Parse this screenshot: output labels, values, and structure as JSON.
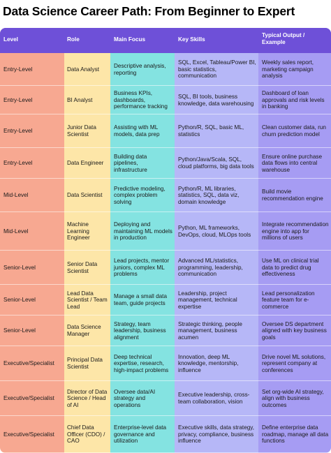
{
  "title": "Data Science Career Path: From Beginner to Expert",
  "headers": [
    "Level",
    "Role",
    "Main Focus",
    "Key Skills",
    "Typical Output / Example"
  ],
  "rows": [
    [
      "Entry-Level",
      "Data Analyst",
      "Descriptive analysis, reporting",
      "SQL, Excel, Tableau/Power BI, basic statistics, communication",
      "Weekly sales report, marketing campaign analysis"
    ],
    [
      "Entry-Level",
      "BI Analyst",
      "Business KPIs, dashboards, performance tracking",
      "SQL, BI tools, business knowledge, data warehousing",
      "Dashboard of loan approvals and risk levels in banking"
    ],
    [
      "Entry-Level",
      "Junior Data Scientist",
      "Assisting with ML models, data prep",
      "Python/R, SQL, basic ML, statistics",
      "Clean customer data, run churn prediction model"
    ],
    [
      "Entry-Level",
      "Data Engineer",
      "Building data pipelines, infrastructure",
      "Python/Java/Scala, SQL, cloud platforms, big data tools",
      "Ensure online purchase data flows into central warehouse"
    ],
    [
      "Mid-Level",
      "Data Scientist",
      "Predictive modeling, complex problem solving",
      "Python/R, ML libraries, statistics, SQL, data viz, domain knowledge",
      "Build movie recommendation engine"
    ],
    [
      "Mid-Level",
      "Machine Learning Engineer",
      "Deploying and maintaining ML models in production",
      "Python, ML frameworks, DevOps, cloud, MLOps tools",
      "Integrate recommendation engine into app for millions of users"
    ],
    [
      "Senior-Level",
      "Senior Data Scientist",
      "Lead projects, mentor juniors, complex ML problems",
      "Advanced ML/statistics, programming, leadership, communication",
      "Use ML on clinical trial data to predict drug effectiveness"
    ],
    [
      "Senior-Level",
      "Lead Data Scientist / Team Lead",
      "Manage a small data team, guide projects",
      "Leadership, project management, technical expertise",
      "Lead personalization feature team for e-commerce"
    ],
    [
      "Senior-Level",
      "Data Science Manager",
      "Strategy, team leadership, business alignment",
      "Strategic thinking, people management, business acumen",
      "Oversee DS department aligned with key business goals"
    ],
    [
      "Executive/Specialist",
      "Principal Data Scientist",
      "Deep technical expertise, research, high-impact problems",
      "Innovation, deep ML knowledge, mentorship, influence",
      "Drive novel ML solutions, represent company at conferences"
    ],
    [
      "Executive/Specialist",
      "Director of Data Science / Head of AI",
      "Oversee data/AI strategy and operations",
      "Executive leadership, cross-team collaboration, vision",
      "Set org-wide AI strategy, align with business outcomes"
    ],
    [
      "Executive/Specialist",
      "Chief Data Officer (CDO) / CAO",
      "Enterprise-level data governance and utilization",
      "Executive skills, data strategy, privacy, compliance, business influence",
      "Define enterprise data roadmap, manage all data functions"
    ]
  ],
  "colors": {
    "header": "#6e50d8",
    "level": "#f7a891",
    "role": "#fde6a8",
    "focus": "#84e3e1",
    "skills": "#b6b7f7",
    "output": "#a69cf3"
  }
}
